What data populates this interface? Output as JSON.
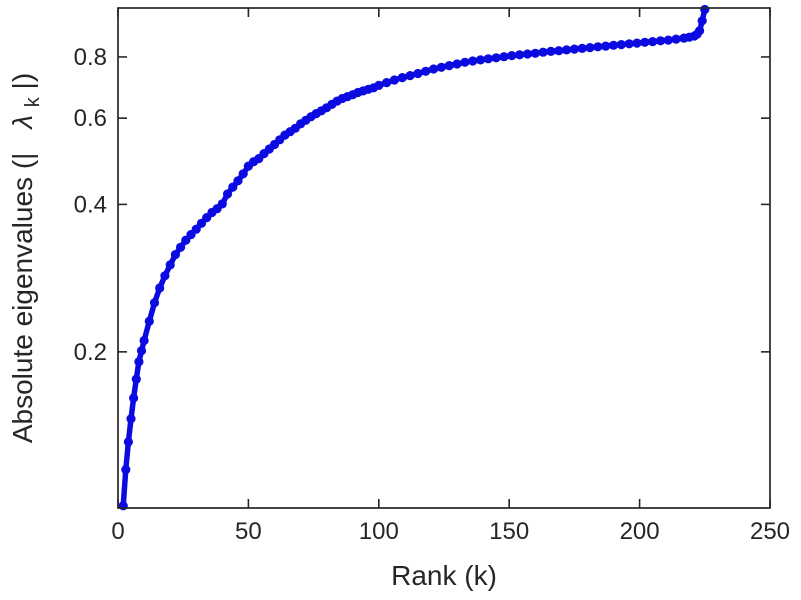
{
  "figure": {
    "background": "#ffffff",
    "axis_color": "#262626"
  },
  "chart_data": {
    "type": "scatter",
    "title": "",
    "xlabel": "Rank (k)",
    "ylabel": "Absolute eigenvalues (|λk|)",
    "ylabel_parts": {
      "prefix": "Absolute eigenvalues (|",
      "symbol": "λ",
      "subscript": "k",
      "suffix": "|)"
    },
    "x_ticks": [
      0,
      50,
      100,
      150,
      200,
      250
    ],
    "y_ticks": [
      0.2,
      0.4,
      0.6,
      0.8
    ],
    "xlim": [
      0,
      250
    ],
    "ylim": [
      0.096,
      1.007
    ],
    "y_scale": "log",
    "grid": false,
    "legend": "none",
    "series_color": "#0b0be1",
    "marker": "filled-circle",
    "points": [
      [
        2,
        0.097
      ],
      [
        3,
        0.115
      ],
      [
        4,
        0.131
      ],
      [
        5,
        0.146
      ],
      [
        6,
        0.161
      ],
      [
        7,
        0.176
      ],
      [
        8,
        0.191
      ],
      [
        9,
        0.201
      ],
      [
        10,
        0.211
      ],
      [
        12,
        0.231
      ],
      [
        14,
        0.252
      ],
      [
        16,
        0.27
      ],
      [
        18,
        0.286
      ],
      [
        20,
        0.301
      ],
      [
        22,
        0.316
      ],
      [
        24,
        0.327
      ],
      [
        26,
        0.338
      ],
      [
        28,
        0.347
      ],
      [
        30,
        0.356
      ],
      [
        32,
        0.366
      ],
      [
        34,
        0.376
      ],
      [
        36,
        0.385
      ],
      [
        38,
        0.392
      ],
      [
        40,
        0.401
      ],
      [
        42,
        0.42
      ],
      [
        44,
        0.434
      ],
      [
        46,
        0.447
      ],
      [
        48,
        0.462
      ],
      [
        50,
        0.479
      ],
      [
        52,
        0.489
      ],
      [
        54,
        0.496
      ],
      [
        56,
        0.508
      ],
      [
        58,
        0.519
      ],
      [
        60,
        0.53
      ],
      [
        62,
        0.542
      ],
      [
        64,
        0.554
      ],
      [
        66,
        0.563
      ],
      [
        68,
        0.572
      ],
      [
        70,
        0.584
      ],
      [
        72,
        0.594
      ],
      [
        74,
        0.604
      ],
      [
        76,
        0.613
      ],
      [
        78,
        0.621
      ],
      [
        80,
        0.63
      ],
      [
        82,
        0.64
      ],
      [
        84,
        0.65
      ],
      [
        86,
        0.658
      ],
      [
        88,
        0.664
      ],
      [
        90,
        0.67
      ],
      [
        92,
        0.677
      ],
      [
        94,
        0.682
      ],
      [
        96,
        0.687
      ],
      [
        98,
        0.692
      ],
      [
        100,
        0.7
      ],
      [
        103,
        0.709
      ],
      [
        106,
        0.718
      ],
      [
        109,
        0.726
      ],
      [
        112,
        0.733
      ],
      [
        115,
        0.74
      ],
      [
        118,
        0.748
      ],
      [
        121,
        0.756
      ],
      [
        124,
        0.762
      ],
      [
        127,
        0.768
      ],
      [
        130,
        0.774
      ],
      [
        133,
        0.78
      ],
      [
        136,
        0.785
      ],
      [
        139,
        0.789
      ],
      [
        142,
        0.793
      ],
      [
        145,
        0.797
      ],
      [
        148,
        0.801
      ],
      [
        151,
        0.805
      ],
      [
        154,
        0.808
      ],
      [
        157,
        0.811
      ],
      [
        160,
        0.814
      ],
      [
        163,
        0.818
      ],
      [
        166,
        0.821
      ],
      [
        169,
        0.824
      ],
      [
        172,
        0.827
      ],
      [
        175,
        0.83
      ],
      [
        178,
        0.833
      ],
      [
        181,
        0.836
      ],
      [
        184,
        0.839
      ],
      [
        187,
        0.842
      ],
      [
        190,
        0.845
      ],
      [
        193,
        0.848
      ],
      [
        196,
        0.851
      ],
      [
        199,
        0.854
      ],
      [
        202,
        0.857
      ],
      [
        205,
        0.86
      ],
      [
        208,
        0.863
      ],
      [
        211,
        0.866
      ],
      [
        214,
        0.87
      ],
      [
        217,
        0.874
      ],
      [
        219,
        0.878
      ],
      [
        221,
        0.883
      ],
      [
        222,
        0.89
      ],
      [
        223,
        0.905
      ],
      [
        224,
        0.948
      ],
      [
        225,
        1.0
      ]
    ]
  }
}
